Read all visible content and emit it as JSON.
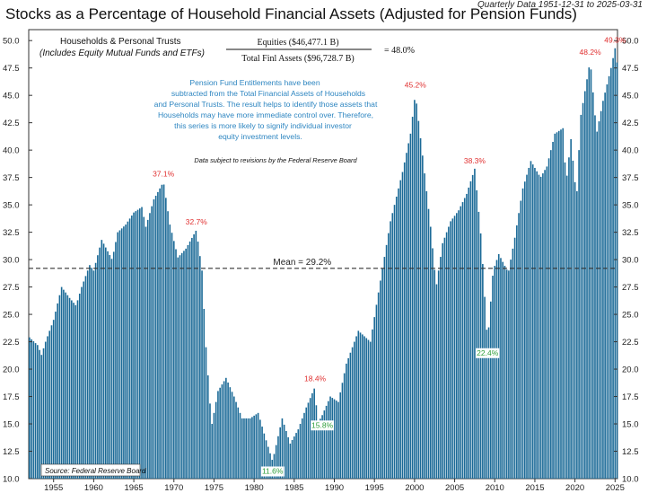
{
  "header": {
    "title": "Stocks as a Percentage of Household Financial Assets (Adjusted for Pension Funds)",
    "subtitle": "Quarterly Data 1951-12-31 to 2025-03-31"
  },
  "legend": {
    "line1": "Households & Personal Trusts",
    "line2": "(Includes Equity Mutual Funds and ETFs)"
  },
  "formula": {
    "numerator": "Equities ($46,477.1 B)",
    "denominator": "Total Finl Assets ($96,728.7 B)",
    "result": "=  48.0%"
  },
  "note": {
    "lines": [
      "Pension Fund Entitlements have been",
      "subtracted from the Total Financial Assets of Households",
      "and Personal Trusts. The result helps to identify those assets that",
      "Households may have more immediate control over. Therefore,",
      "this series is more likely to signify individual investor",
      "equity investment levels."
    ],
    "revisions": "Data subject to revisions by the Federal Reserve Board"
  },
  "source": "Source:  Federal Reserve Board",
  "mean_label": "Mean = 29.2%",
  "colors": {
    "bar": "#1b6a97",
    "peak_label": "#e03030",
    "trough_label": "#2e9e3a",
    "note_text": "#2e86c1",
    "mean_line": "#333333"
  },
  "chart_data": {
    "type": "bar",
    "title": "Stocks as a Percentage of Household Financial Assets (Adjusted for Pension Funds)",
    "xlabel": "",
    "ylabel": "",
    "x_range": [
      1951.9,
      2025.3
    ],
    "ylim": [
      10,
      51
    ],
    "y_ticks": [
      "10.0",
      "12.5",
      "15.0",
      "17.5",
      "20.0",
      "22.5",
      "25.0",
      "27.5",
      "30.0",
      "32.5",
      "35.0",
      "37.5",
      "40.0",
      "42.5",
      "45.0",
      "47.5",
      "50.0"
    ],
    "x_ticks": [
      "1955",
      "1960",
      "1965",
      "1970",
      "1975",
      "1980",
      "1985",
      "1990",
      "1995",
      "2000",
      "2005",
      "2010",
      "2015",
      "2020",
      "2025"
    ],
    "grid": false,
    "mean": 29.2,
    "series": [
      {
        "keypoints": [
          [
            1952.0,
            22.9
          ],
          [
            1953.0,
            22.2
          ],
          [
            1953.5,
            21.3
          ],
          [
            1954.0,
            22.5
          ],
          [
            1955.0,
            24.5
          ],
          [
            1956.0,
            27.5
          ],
          [
            1957.0,
            26.5
          ],
          [
            1957.8,
            25.8
          ],
          [
            1958.5,
            27.5
          ],
          [
            1959.5,
            29.5
          ],
          [
            1960.0,
            29.0
          ],
          [
            1961.0,
            31.8
          ],
          [
            1962.3,
            30.0
          ],
          [
            1963.0,
            32.5
          ],
          [
            1964.0,
            33.2
          ],
          [
            1965.0,
            34.3
          ],
          [
            1966.0,
            34.8
          ],
          [
            1966.5,
            33.0
          ],
          [
            1967.5,
            35.5
          ],
          [
            1968.7,
            37.1
          ],
          [
            1969.5,
            33.2
          ],
          [
            1970.5,
            30.2
          ],
          [
            1971.5,
            31.0
          ],
          [
            1972.8,
            32.7
          ],
          [
            1973.5,
            29.0
          ],
          [
            1974.0,
            22.0
          ],
          [
            1974.7,
            14.8
          ],
          [
            1975.5,
            18.0
          ],
          [
            1976.5,
            19.2
          ],
          [
            1977.5,
            17.5
          ],
          [
            1978.5,
            15.5
          ],
          [
            1979.5,
            15.5
          ],
          [
            1980.5,
            16.0
          ],
          [
            1981.5,
            13.5
          ],
          [
            1982.3,
            11.6
          ],
          [
            1983.5,
            15.5
          ],
          [
            1984.5,
            13.2
          ],
          [
            1985.5,
            14.5
          ],
          [
            1986.5,
            16.5
          ],
          [
            1987.6,
            18.4
          ],
          [
            1987.9,
            15.0
          ],
          [
            1988.5,
            15.8
          ],
          [
            1989.5,
            17.5
          ],
          [
            1990.5,
            17.0
          ],
          [
            1991.5,
            20.5
          ],
          [
            1993.0,
            23.5
          ],
          [
            1994.5,
            22.5
          ],
          [
            1995.5,
            27.0
          ],
          [
            1997.0,
            33.5
          ],
          [
            1998.5,
            38.0
          ],
          [
            1999.5,
            41.5
          ],
          [
            2000.1,
            45.2
          ],
          [
            2001.0,
            39.5
          ],
          [
            2002.0,
            33.0
          ],
          [
            2002.7,
            27.5
          ],
          [
            2003.5,
            31.5
          ],
          [
            2004.5,
            33.5
          ],
          [
            2005.5,
            34.5
          ],
          [
            2006.5,
            36.0
          ],
          [
            2007.5,
            38.3
          ],
          [
            2008.3,
            32.0
          ],
          [
            2009.1,
            22.4
          ],
          [
            2009.8,
            29.0
          ],
          [
            2010.5,
            30.5
          ],
          [
            2011.7,
            28.8
          ],
          [
            2012.5,
            32.0
          ],
          [
            2013.5,
            36.5
          ],
          [
            2014.5,
            39.0
          ],
          [
            2015.7,
            37.5
          ],
          [
            2016.5,
            38.5
          ],
          [
            2017.5,
            41.5
          ],
          [
            2018.5,
            42.0
          ],
          [
            2018.9,
            37.0
          ],
          [
            2019.5,
            41.0
          ],
          [
            2020.2,
            35.5
          ],
          [
            2020.7,
            43.0
          ],
          [
            2021.9,
            48.2
          ],
          [
            2022.7,
            41.5
          ],
          [
            2023.5,
            44.5
          ],
          [
            2024.5,
            47.5
          ],
          [
            2025.0,
            49.3
          ],
          [
            2025.2,
            48.0
          ]
        ]
      }
    ],
    "annotations": {
      "peaks": [
        {
          "label": "37.1%",
          "x": 1968.7,
          "y": 37.1
        },
        {
          "label": "32.7%",
          "x": 1972.8,
          "y": 32.7
        },
        {
          "label": "18.4%",
          "x": 1987.6,
          "y": 18.4
        },
        {
          "label": "45.2%",
          "x": 2000.1,
          "y": 45.2
        },
        {
          "label": "38.3%",
          "x": 2007.5,
          "y": 38.3
        },
        {
          "label": "48.2%",
          "x": 2021.9,
          "y": 48.2
        },
        {
          "label": "49.3%",
          "x": 2025.0,
          "y": 49.3
        }
      ],
      "troughs": [
        {
          "label": "11.6%",
          "x": 1982.3,
          "y": 11.6
        },
        {
          "label": "15.8%",
          "x": 1988.5,
          "y": 15.8
        },
        {
          "label": "22.4%",
          "x": 2009.1,
          "y": 22.4
        }
      ]
    }
  }
}
